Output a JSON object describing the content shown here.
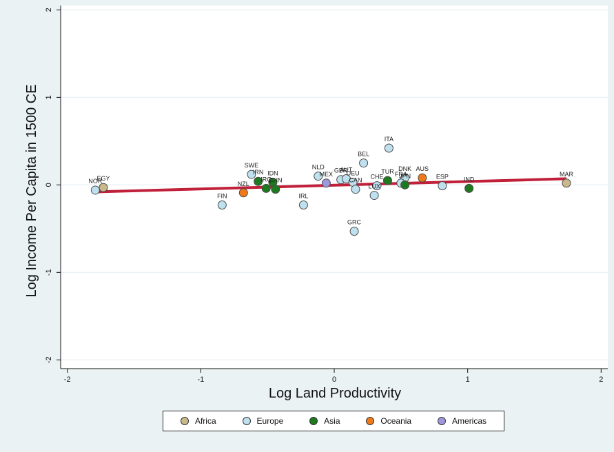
{
  "chart_data": {
    "type": "scatter",
    "xlabel": "Log Land Productivity",
    "ylabel": "Log Income Per Capita in 1500 CE",
    "xlim": [
      -2.05,
      2.05
    ],
    "ylim": [
      -2.1,
      2.05
    ],
    "x_ticks": [
      -2,
      -1,
      0,
      1,
      2
    ],
    "y_ticks": [
      -2,
      -1,
      0,
      1,
      2
    ],
    "x_tick_labels": [
      "-2",
      "-1",
      "0",
      "1",
      "2"
    ],
    "y_tick_labels": [
      "-2",
      "-1",
      "0",
      "1",
      "2"
    ],
    "grid": "horizontal",
    "legend_position": "bottom",
    "series": [
      {
        "name": "Africa",
        "color": "#c9b98a",
        "points": [
          {
            "label": "EGY",
            "x": -1.73,
            "y": -0.03
          },
          {
            "label": "MAR",
            "x": 1.74,
            "y": 0.02
          }
        ]
      },
      {
        "name": "Europe",
        "color": "#bfe0ee",
        "points": [
          {
            "label": "NOR",
            "x": -1.79,
            "y": -0.06
          },
          {
            "label": "FIN",
            "x": -0.84,
            "y": -0.23
          },
          {
            "label": "SWE",
            "x": -0.62,
            "y": 0.12
          },
          {
            "label": "IRL",
            "x": -0.23,
            "y": -0.23
          },
          {
            "label": "NLD",
            "x": -0.12,
            "y": 0.1
          },
          {
            "label": "GBR",
            "x": 0.05,
            "y": 0.06
          },
          {
            "label": "AUT",
            "x": 0.09,
            "y": 0.07
          },
          {
            "label": "DEU",
            "x": 0.14,
            "y": 0.03
          },
          {
            "label": "CAN",
            "x": 0.16,
            "y": -0.05
          },
          {
            "label": "GRC",
            "x": 0.15,
            "y": -0.53
          },
          {
            "label": "BEL",
            "x": 0.22,
            "y": 0.25
          },
          {
            "label": "CHE",
            "x": 0.32,
            "y": -0.01
          },
          {
            "label": "ITA",
            "x": 0.41,
            "y": 0.42
          },
          {
            "label": "LUX",
            "x": 0.3,
            "y": -0.12
          },
          {
            "label": "DNK",
            "x": 0.53,
            "y": 0.08
          },
          {
            "label": "FRA",
            "x": 0.5,
            "y": 0.02
          },
          {
            "label": "ESP",
            "x": 0.81,
            "y": -0.01
          }
        ]
      },
      {
        "name": "Asia",
        "color": "#1e7a1e",
        "points": [
          {
            "label": "IRN",
            "x": -0.57,
            "y": 0.04
          },
          {
            "label": "IRQ",
            "x": -0.51,
            "y": -0.04
          },
          {
            "label": "IDN",
            "x": -0.46,
            "y": 0.03
          },
          {
            "label": "CHN",
            "x": -0.44,
            "y": -0.05
          },
          {
            "label": "TUR",
            "x": 0.4,
            "y": 0.05
          },
          {
            "label": "JPN",
            "x": 0.53,
            "y": 0.0
          },
          {
            "label": "IND",
            "x": 1.01,
            "y": -0.04
          }
        ]
      },
      {
        "name": "Oceania",
        "color": "#f07a1a",
        "points": [
          {
            "label": "NZL",
            "x": -0.68,
            "y": -0.09
          },
          {
            "label": "AUS",
            "x": 0.66,
            "y": 0.08
          }
        ]
      },
      {
        "name": "Americas",
        "color": "#9f97dd",
        "points": [
          {
            "label": "MEX",
            "x": -0.06,
            "y": 0.02
          }
        ]
      }
    ],
    "fit_line": {
      "x": [
        -1.79,
        1.74
      ],
      "y": [
        -0.08,
        0.07
      ],
      "color": "#c0203a"
    }
  },
  "legend": {
    "items": [
      {
        "label": "Africa",
        "color": "#c9b98a"
      },
      {
        "label": "Europe",
        "color": "#bfe0ee"
      },
      {
        "label": "Asia",
        "color": "#1e7a1e"
      },
      {
        "label": "Oceania",
        "color": "#f07a1a"
      },
      {
        "label": "Americas",
        "color": "#9f97dd"
      }
    ]
  }
}
